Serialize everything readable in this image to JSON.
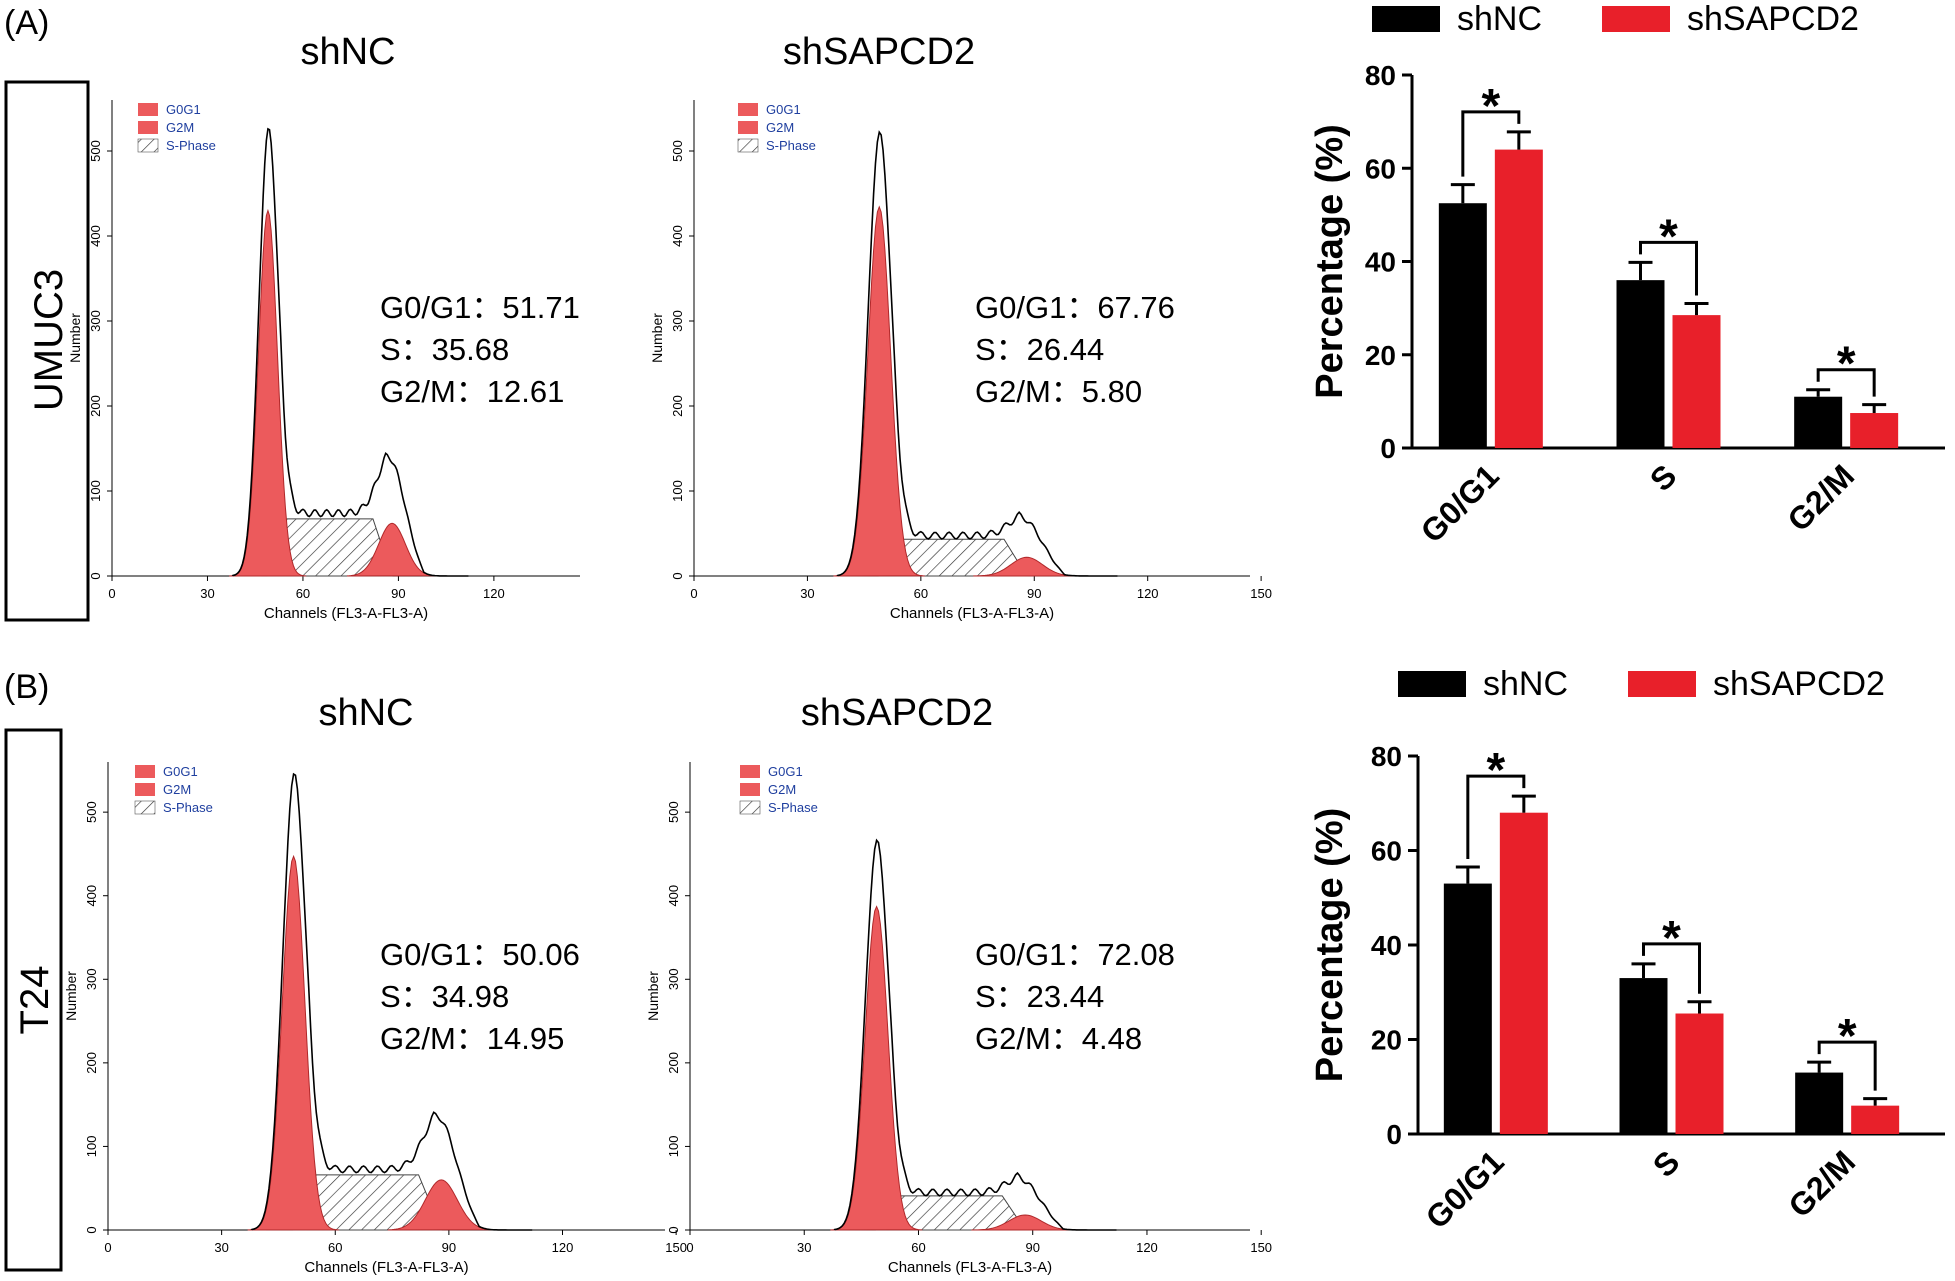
{
  "colors": {
    "shNC": "#000000",
    "shSAPCD2": "#e8202a",
    "phase_fill": "#ec5a5c",
    "legend_text": "#1f3f9f"
  },
  "figure": {
    "panels": [
      {
        "label": "(A)",
        "cell_line": "UMUC3",
        "histograms": [
          {
            "title": "shNC",
            "legend": [
              "G0G1",
              "G2M",
              "S-Phase"
            ],
            "stats": [
              "G0/G1：51.71",
              "S：35.68",
              "G2/M：12.61"
            ],
            "xlabel": "Channels (FL3-A-FL3-A)",
            "ylabel": "Number",
            "xticks": [
              "0",
              "30",
              "60",
              "90",
              "120"
            ],
            "yticks": [
              "0",
              "100",
              "200",
              "300",
              "400",
              "500"
            ],
            "g1_peak_height": 500,
            "g2_peak_height": 62
          },
          {
            "title": "shSAPCD2",
            "legend": [
              "G0G1",
              "G2M",
              "S-Phase"
            ],
            "stats": [
              "G0/G1：67.76",
              "S：26.44",
              "G2/M：5.80"
            ],
            "xlabel": "Channels (FL3-A-FL3-A)",
            "ylabel": "Number",
            "xticks": [
              "0",
              "30",
              "60",
              "90",
              "120",
              "150"
            ],
            "yticks": [
              "0",
              "100",
              "200",
              "300",
              "400",
              "500"
            ],
            "g1_peak_height": 505,
            "g2_peak_height": 22
          }
        ]
      },
      {
        "label": "(B)",
        "cell_line": "T24",
        "histograms": [
          {
            "title": "shNC",
            "legend": [
              "G0G1",
              "G2M",
              "S-Phase"
            ],
            "stats": [
              "G0/G1：50.06",
              "S：34.98",
              "G2/M：14.95"
            ],
            "xlabel": "Channels (FL3-A-FL3-A)",
            "ylabel": "Number",
            "xticks": [
              "0",
              "30",
              "60",
              "90",
              "120",
              "150"
            ],
            "yticks": [
              "0",
              "100",
              "200",
              "300",
              "400",
              "500"
            ],
            "g1_peak_height": 520,
            "g2_peak_height": 60
          },
          {
            "title": "shSAPCD2",
            "legend": [
              "G0G1",
              "G2M",
              "S-Phase"
            ],
            "stats": [
              "G0/G1：72.08",
              "S：23.44",
              "G2/M：4.48"
            ],
            "xlabel": "Channels (FL3-A-FL3-A)",
            "ylabel": "Number",
            "xticks": [
              "0",
              "30",
              "60",
              "90",
              "120",
              "150"
            ],
            "yticks": [
              "0",
              "100",
              "200",
              "300",
              "400",
              "500"
            ],
            "g1_peak_height": 450,
            "g2_peak_height": 18
          }
        ]
      }
    ]
  },
  "chart_data": [
    {
      "type": "bar",
      "panel": "(A) UMUC3",
      "categories": [
        "G0/G1",
        "S",
        "G2/M"
      ],
      "series": [
        {
          "name": "shNC",
          "values": [
            52.5,
            36.0,
            11.0
          ],
          "errors": [
            4.0,
            3.8,
            1.5
          ]
        },
        {
          "name": "shSAPCD2",
          "values": [
            64.0,
            28.5,
            7.5
          ],
          "errors": [
            3.8,
            2.5,
            1.8
          ]
        }
      ],
      "significance": [
        "*",
        "*",
        "*"
      ],
      "ylabel": "Percentage (%)",
      "ylim": [
        0,
        80
      ],
      "yticks": [
        "0",
        "20",
        "40",
        "60",
        "80"
      ],
      "legend_position": "top"
    },
    {
      "type": "bar",
      "panel": "(B) T24",
      "categories": [
        "G0/G1",
        "S",
        "G2/M"
      ],
      "series": [
        {
          "name": "shNC",
          "values": [
            53.0,
            33.0,
            13.0
          ],
          "errors": [
            3.5,
            3.0,
            2.2
          ]
        },
        {
          "name": "shSAPCD2",
          "values": [
            68.0,
            25.5,
            6.0
          ],
          "errors": [
            3.5,
            2.5,
            1.5
          ]
        }
      ],
      "significance": [
        "*",
        "*",
        "*"
      ],
      "ylabel": "Percentage (%)",
      "ylim": [
        0,
        80
      ],
      "yticks": [
        "0",
        "20",
        "40",
        "60",
        "80"
      ],
      "legend_position": "top"
    }
  ]
}
